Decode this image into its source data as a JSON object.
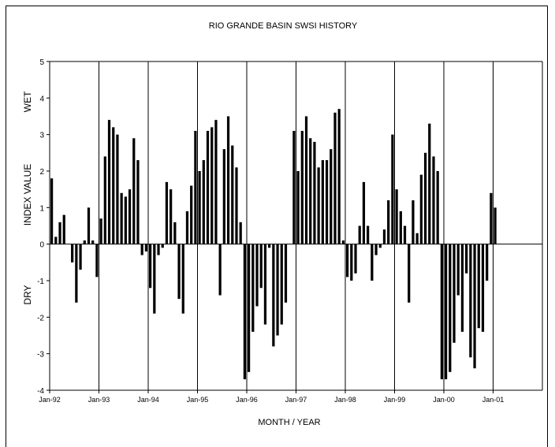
{
  "chart_data": {
    "type": "bar",
    "title": "RIO GRANDE BASIN SWSI HISTORY",
    "xlabel": "MONTH / YEAR",
    "ylabel_left": "DRY",
    "ylabel_center": "INDEX VALUE",
    "ylabel_right": "WET",
    "ylim": [
      -4,
      5
    ],
    "yticks": [
      "5",
      "4",
      "3",
      "2",
      "1",
      "0",
      "-1",
      "-2",
      "-3",
      "-4"
    ],
    "x_tick_labels": [
      "Jan-92",
      "Jan-93",
      "Jan-94",
      "Jan-95",
      "Jan-96",
      "Jan-97",
      "Jan-98",
      "Jan-99",
      "Jan-00",
      "Jan-01"
    ],
    "grid": "vertical lines at each January",
    "series": [
      {
        "values": [
          1.8,
          0.2,
          0.6,
          0.8,
          0,
          -0.5,
          -1.6,
          -0.7,
          0.1,
          1.0,
          0.1,
          -0.9,
          0.7,
          2.4,
          3.4,
          3.2,
          3.0,
          1.4,
          1.3,
          1.5,
          2.9,
          2.3,
          -0.3,
          -0.2,
          -1.2,
          -1.9,
          -0.3,
          -0.1,
          1.7,
          1.5,
          0.6,
          -1.5,
          -1.9,
          0.9,
          1.6,
          3.1,
          2.0,
          2.3,
          3.1,
          3.2,
          3.4,
          -1.4,
          2.6,
          3.5,
          2.7,
          2.1,
          0.6,
          -3.7,
          -3.5,
          -2.4,
          -1.7,
          -1.2,
          -2.2,
          -0.1,
          -2.8,
          -2.5,
          -2.2,
          -1.6,
          0,
          3.1,
          2.0,
          3.1,
          3.5,
          2.9,
          2.8,
          2.1,
          2.3,
          2.3,
          2.6,
          3.6,
          3.7,
          0.1,
          -0.9,
          -1.0,
          -0.8,
          0.5,
          1.7,
          0.5,
          -1.0,
          -0.3,
          -0.1,
          0.4,
          1.2,
          3.0,
          1.5,
          0.9,
          0.5,
          -1.6,
          1.2,
          0.3,
          1.9,
          2.5,
          3.3,
          2.4,
          2.0,
          -3.7,
          -3.7,
          -3.5,
          -2.7,
          -1.4,
          -2.4,
          -0.8,
          -3.1,
          -3.4,
          -2.3,
          -2.4,
          -1.0,
          1.4,
          1.0
        ]
      }
    ]
  }
}
